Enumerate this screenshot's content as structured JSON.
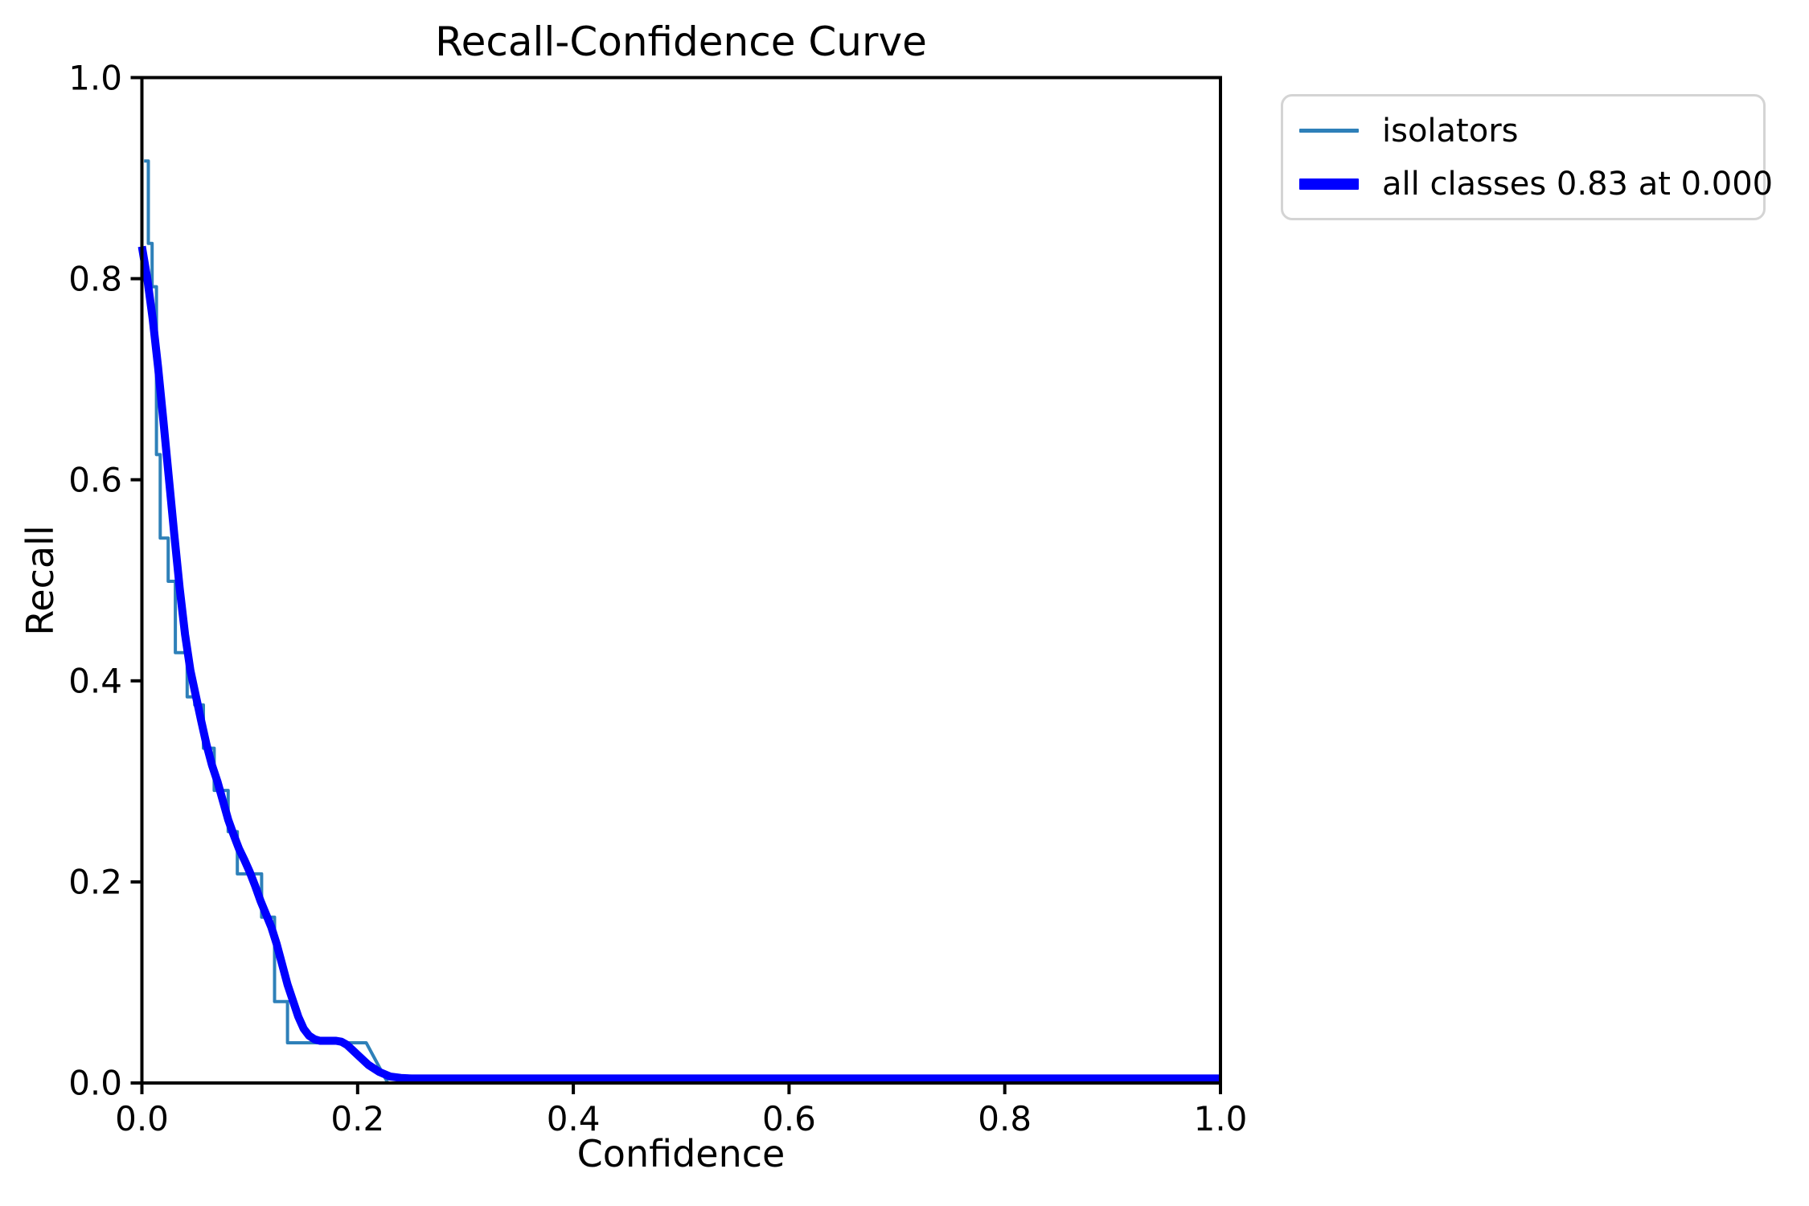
{
  "title": "Recall-Confidence Curve",
  "chart_data": {
    "type": "line",
    "title": "Recall-Confidence Curve",
    "xlabel": "Confidence",
    "ylabel": "Recall",
    "xlim": [
      0.0,
      1.0
    ],
    "ylim": [
      0.0,
      1.0
    ],
    "xticks": [
      0.0,
      0.2,
      0.4,
      0.6,
      0.8,
      1.0
    ],
    "yticks": [
      0.0,
      0.2,
      0.4,
      0.6,
      0.8,
      1.0
    ],
    "grid": false,
    "legend_position": "upper-right-outside",
    "axis_color": "#000000",
    "series": [
      {
        "name": "isolators",
        "style": "step",
        "color": "#2e80b9",
        "line_width": 4,
        "points": [
          [
            0.002,
            0.917
          ],
          [
            0.006,
            0.917
          ],
          [
            0.006,
            0.835
          ],
          [
            0.0095,
            0.835
          ],
          [
            0.0095,
            0.792
          ],
          [
            0.0135,
            0.792
          ],
          [
            0.0135,
            0.625
          ],
          [
            0.017,
            0.625
          ],
          [
            0.017,
            0.542
          ],
          [
            0.0244,
            0.542
          ],
          [
            0.0244,
            0.499
          ],
          [
            0.031,
            0.499
          ],
          [
            0.031,
            0.428
          ],
          [
            0.042,
            0.428
          ],
          [
            0.042,
            0.384
          ],
          [
            0.049,
            0.384
          ],
          [
            0.049,
            0.376
          ],
          [
            0.057,
            0.376
          ],
          [
            0.057,
            0.333
          ],
          [
            0.067,
            0.333
          ],
          [
            0.067,
            0.291
          ],
          [
            0.08,
            0.291
          ],
          [
            0.08,
            0.25
          ],
          [
            0.0885,
            0.25
          ],
          [
            0.0885,
            0.208
          ],
          [
            0.111,
            0.208
          ],
          [
            0.111,
            0.165
          ],
          [
            0.123,
            0.165
          ],
          [
            0.123,
            0.081
          ],
          [
            0.135,
            0.081
          ],
          [
            0.135,
            0.04
          ],
          [
            0.208,
            0.04
          ],
          [
            0.228,
            0.0
          ]
        ]
      },
      {
        "name": "all classes 0.83 at 0.000",
        "style": "smooth",
        "color": "#0000ff",
        "line_width": 10,
        "points": [
          [
            0.0,
            0.832
          ],
          [
            0.005,
            0.8
          ],
          [
            0.01,
            0.76
          ],
          [
            0.015,
            0.712
          ],
          [
            0.02,
            0.658
          ],
          [
            0.025,
            0.602
          ],
          [
            0.03,
            0.546
          ],
          [
            0.035,
            0.492
          ],
          [
            0.04,
            0.446
          ],
          [
            0.045,
            0.41
          ],
          [
            0.05,
            0.385
          ],
          [
            0.055,
            0.36
          ],
          [
            0.06,
            0.336
          ],
          [
            0.065,
            0.316
          ],
          [
            0.07,
            0.3
          ],
          [
            0.075,
            0.281
          ],
          [
            0.08,
            0.262
          ],
          [
            0.085,
            0.247
          ],
          [
            0.09,
            0.233
          ],
          [
            0.095,
            0.222
          ],
          [
            0.1,
            0.21
          ],
          [
            0.105,
            0.196
          ],
          [
            0.11,
            0.181
          ],
          [
            0.115,
            0.168
          ],
          [
            0.12,
            0.155
          ],
          [
            0.125,
            0.138
          ],
          [
            0.13,
            0.118
          ],
          [
            0.135,
            0.098
          ],
          [
            0.14,
            0.082
          ],
          [
            0.145,
            0.066
          ],
          [
            0.15,
            0.054
          ],
          [
            0.155,
            0.047
          ],
          [
            0.16,
            0.0435
          ],
          [
            0.165,
            0.042
          ],
          [
            0.17,
            0.042
          ],
          [
            0.175,
            0.042
          ],
          [
            0.18,
            0.042
          ],
          [
            0.185,
            0.041
          ],
          [
            0.19,
            0.038
          ],
          [
            0.195,
            0.033
          ],
          [
            0.2,
            0.028
          ],
          [
            0.21,
            0.018
          ],
          [
            0.22,
            0.011
          ],
          [
            0.23,
            0.0065
          ],
          [
            0.24,
            0.005
          ],
          [
            0.25,
            0.0045
          ],
          [
            0.3,
            0.0045
          ],
          [
            0.4,
            0.0045
          ],
          [
            0.5,
            0.0045
          ],
          [
            0.6,
            0.0045
          ],
          [
            0.7,
            0.0045
          ],
          [
            0.8,
            0.0045
          ],
          [
            0.9,
            0.0045
          ],
          [
            1.0,
            0.0045
          ]
        ]
      }
    ]
  },
  "legend": {
    "items": [
      {
        "label": "isolators",
        "color": "#2e80b9",
        "thickness": "thin"
      },
      {
        "label": "all classes 0.83 at 0.000",
        "color": "#0000ff",
        "thickness": "thick"
      }
    ]
  }
}
